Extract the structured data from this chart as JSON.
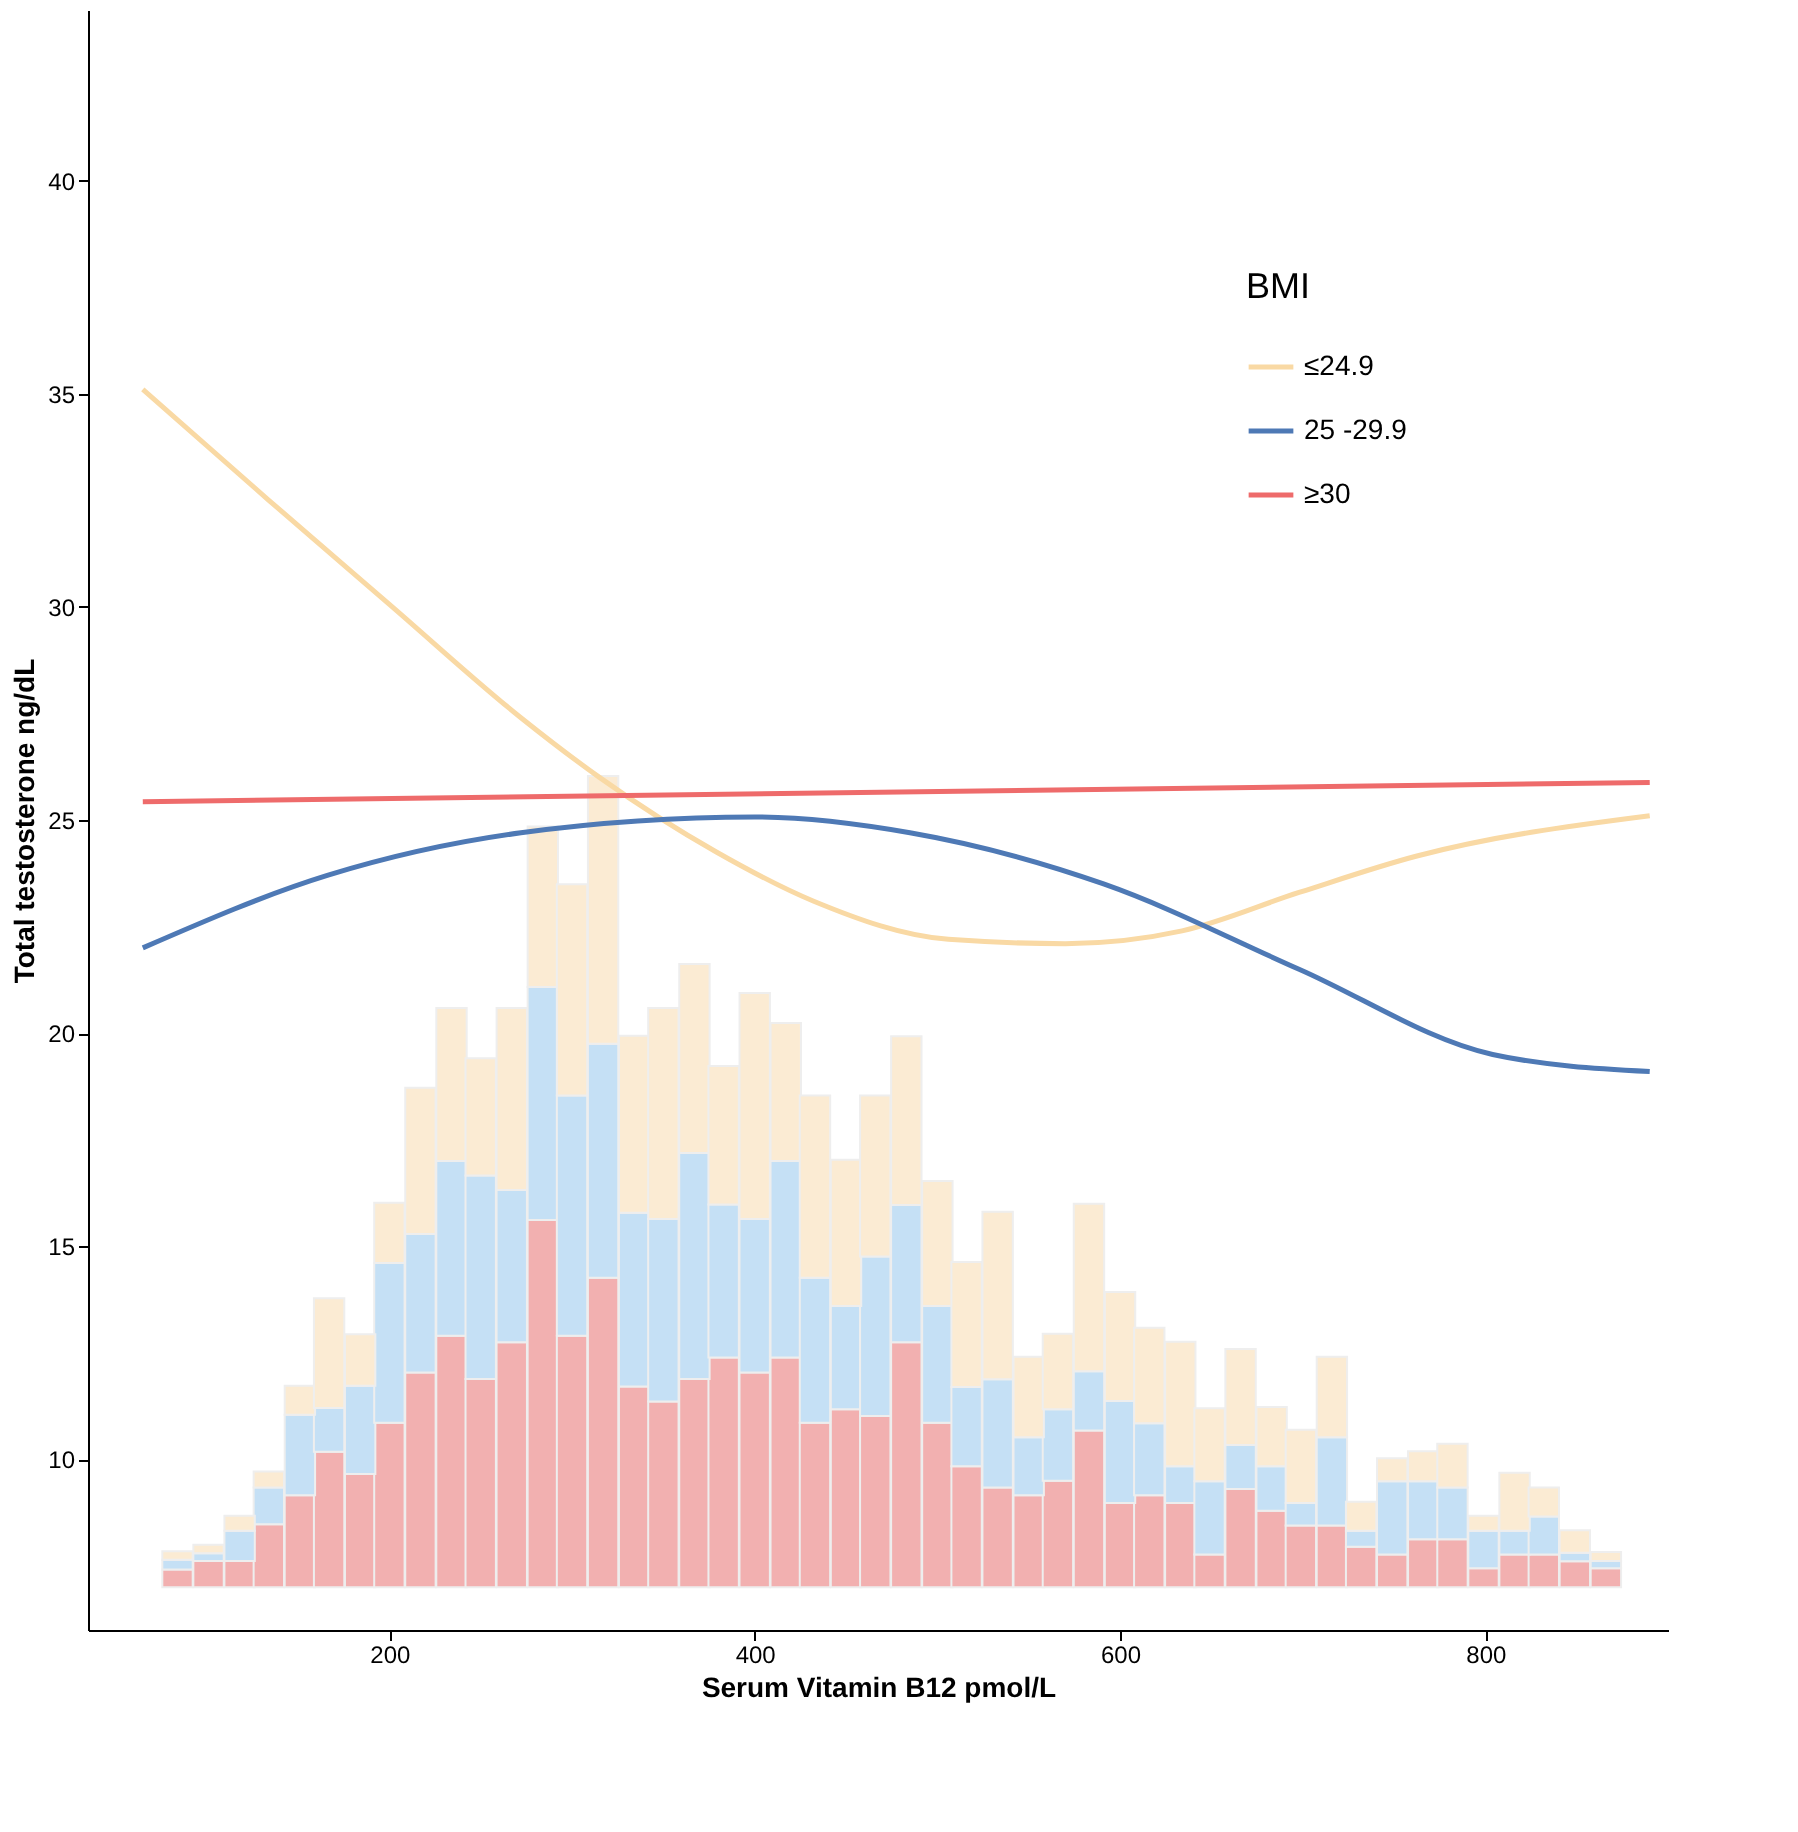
{
  "chart_data": {
    "type": "bar",
    "xlabel": "Serum Vitamin B12 pmol/L",
    "ylabel": "Total testosterone ng/dL",
    "legend_title": "BMI",
    "x": [
      84,
      101,
      118,
      134,
      151,
      167,
      184,
      200,
      217,
      234,
      250,
      267,
      284,
      300,
      317,
      334,
      350,
      367,
      383,
      400,
      417,
      433,
      450,
      466,
      483,
      500,
      516,
      533,
      550,
      566,
      583,
      600,
      616,
      633,
      649,
      666,
      683,
      699,
      716,
      732,
      749,
      766,
      782,
      799,
      816,
      832,
      849,
      866
    ],
    "series": [
      {
        "color": "#f2b0b0",
        "base": [
          7,
          7,
          7,
          7,
          7,
          7,
          7,
          7,
          7,
          7,
          7,
          7,
          7,
          7,
          7,
          7,
          7,
          7,
          7,
          7,
          7,
          7,
          7,
          7,
          7,
          7,
          7,
          7,
          7,
          7,
          7,
          7,
          7,
          7,
          7,
          7,
          7,
          7,
          7,
          7,
          7,
          7,
          7,
          7,
          7,
          7,
          7,
          7
        ],
        "values": [
          0.42,
          0.62,
          0.62,
          1.48,
          2.16,
          3.18,
          2.66,
          3.86,
          5.04,
          5.9,
          4.89,
          5.75,
          8.62,
          5.9,
          7.26,
          4.71,
          4.36,
          4.89,
          5.39,
          5.04,
          5.39,
          3.86,
          4.18,
          4.02,
          5.75,
          3.86,
          2.84,
          2.34,
          2.16,
          2.5,
          3.68,
          1.98,
          2.16,
          1.98,
          0.77,
          2.31,
          1.8,
          1.45,
          1.45,
          0.95,
          0.77,
          1.13,
          1.13,
          0.45,
          0.77,
          0.77,
          0.61,
          0.45
        ]
      },
      {
        "color": "#c5e0f5",
        "base": [
          7.42,
          7.62,
          7.62,
          8.48,
          9.16,
          10.18,
          9.66,
          10.86,
          12.04,
          12.9,
          11.89,
          12.75,
          15.62,
          12.9,
          14.26,
          11.71,
          11.36,
          11.89,
          12.39,
          12.04,
          12.39,
          10.86,
          11.18,
          11.02,
          12.75,
          10.86,
          9.84,
          9.34,
          9.16,
          9.5,
          10.68,
          8.98,
          9.16,
          8.98,
          7.77,
          9.31,
          8.8,
          8.45,
          8.45,
          7.95,
          7.77,
          8.13,
          8.13,
          7.45,
          7.77,
          7.77,
          7.61,
          7.45
        ],
        "values": [
          0.23,
          0.18,
          0.71,
          0.86,
          1.89,
          1.03,
          2.07,
          3.75,
          3.25,
          4.1,
          4.77,
          3.57,
          5.46,
          5.64,
          5.49,
          4.08,
          4.28,
          5.3,
          3.59,
          3.6,
          4.61,
          3.4,
          2.42,
          3.74,
          3.22,
          2.74,
          1.86,
          2.54,
          1.36,
          1.68,
          1.39,
          2.39,
          1.69,
          0.86,
          1.72,
          1.03,
          1.04,
          0.53,
          2.07,
          0.38,
          1.72,
          1.36,
          1.21,
          0.88,
          0.56,
          0.89,
          0.2,
          0.17
        ]
      },
      {
        "color": "#fbebd3",
        "base": [
          7.65,
          7.8,
          8.33,
          9.34,
          11.05,
          11.21,
          11.73,
          14.61,
          15.29,
          17.0,
          16.66,
          16.32,
          21.08,
          18.54,
          19.75,
          15.79,
          15.64,
          17.19,
          15.98,
          15.64,
          17.0,
          14.26,
          13.6,
          14.76,
          15.97,
          13.6,
          11.7,
          11.88,
          10.52,
          11.18,
          12.07,
          11.37,
          10.85,
          9.84,
          9.49,
          10.34,
          9.84,
          8.98,
          10.52,
          8.33,
          9.49,
          9.49,
          9.34,
          8.33,
          8.33,
          8.66,
          7.81,
          7.62
        ],
        "values": [
          0.2,
          0.2,
          0.35,
          0.38,
          0.68,
          2.57,
          1.21,
          1.41,
          3.43,
          3.59,
          2.75,
          4.27,
          3.77,
          4.95,
          6.28,
          4.15,
          4.95,
          4.43,
          3.25,
          5.3,
          3.24,
          4.28,
          3.43,
          3.78,
          3.96,
          2.93,
          2.93,
          3.93,
          1.89,
          1.77,
          3.93,
          2.56,
          2.24,
          2.92,
          1.71,
          2.25,
          1.39,
          1.72,
          1.89,
          0.68,
          0.54,
          0.7,
          1.03,
          0.35,
          1.36,
          0.68,
          0.53,
          0.21
        ]
      },
      {
        "type": "line",
        "name": "≤24.9",
        "color": "#f9d9a4",
        "x": [
          65,
          134,
          200,
          272,
          315,
          379,
          432,
          506,
          570,
          634,
          698,
          762,
          890
        ],
        "values": [
          35.1,
          32.5,
          30.06,
          27.4,
          26.0,
          24.25,
          23.1,
          22.2,
          22.1,
          22.4,
          23.3,
          24.15,
          25.1
        ]
      },
      {
        "type": "line",
        "name": "25 -29.9",
        "color": "#4e79b5",
        "x": [
          65,
          166,
          272,
          400,
          485,
          591,
          698,
          804,
          890
        ],
        "values": [
          22.0,
          23.7,
          24.7,
          25.07,
          24.7,
          23.5,
          21.5,
          19.5,
          19.1
        ]
      },
      {
        "type": "line",
        "name": "≥30",
        "color": "#ee6b6b",
        "x": [
          65,
          890
        ],
        "values": [
          25.43,
          25.88
        ]
      }
    ],
    "xlim": [
      35,
      900
    ],
    "xticks": [
      200,
      400,
      600,
      800
    ],
    "ylim": [
      6,
      44
    ],
    "yticks": [
      10,
      15,
      20,
      25,
      30,
      35,
      40
    ],
    "grid": false,
    "legend": "top right"
  }
}
